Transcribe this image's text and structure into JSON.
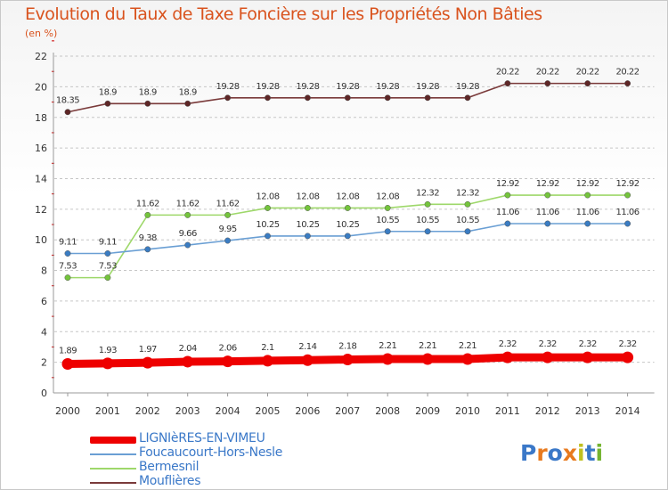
{
  "header": {
    "title": "Evolution du Taux de Taxe Foncière sur les Propriétés Non Bâties",
    "unit": "(en %)"
  },
  "logo": {
    "text": "Proxiti"
  },
  "colors": {
    "title": "#d9531e",
    "grid": "#c0c0c0",
    "axis_red": "#cc0000"
  },
  "chart_data": {
    "type": "line",
    "title": "Evolution du Taux de Taxe Foncière sur les Propriétés Non Bâties",
    "ylabel": "(en %)",
    "xlabel": "",
    "ylim": [
      0,
      22
    ],
    "yticks": [
      0,
      2,
      4,
      6,
      8,
      10,
      12,
      14,
      16,
      18,
      20,
      22
    ],
    "x": [
      "2000",
      "2001",
      "2002",
      "2003",
      "2004",
      "2005",
      "2006",
      "2007",
      "2008",
      "2009",
      "2010",
      "2011",
      "2012",
      "2013",
      "2014"
    ],
    "grid": "horizontal dashed",
    "legend": "bottom-left",
    "series": [
      {
        "name": "LIGNIèRES-EN-VIMEU",
        "color": "#ee0000",
        "point": "#ee0000",
        "width": "thick",
        "values": [
          1.89,
          1.93,
          1.97,
          2.04,
          2.06,
          2.1,
          2.14,
          2.18,
          2.21,
          2.21,
          2.21,
          2.32,
          2.32,
          2.32,
          2.32
        ],
        "labels": [
          "1.89",
          "1.93",
          "1.97",
          "2.04",
          "2.06",
          "2.1",
          "2.14",
          "2.18",
          "2.21",
          "2.21",
          "2.21",
          "2.32",
          "2.32",
          "2.32",
          "2.32"
        ]
      },
      {
        "name": "Foucaucourt-Hors-Nesle",
        "color": "#6a9fd4",
        "point": "#3a7cc2",
        "width": "thin",
        "values": [
          9.11,
          9.11,
          9.38,
          9.66,
          9.95,
          10.25,
          10.25,
          10.25,
          10.55,
          10.55,
          10.55,
          11.06,
          11.06,
          11.06,
          11.06
        ],
        "labels": [
          "9.11",
          "9.11",
          "9.38",
          "9.66",
          "9.95",
          "10.25",
          "10.25",
          "10.25",
          "10.55",
          "10.55",
          "10.55",
          "11.06",
          "11.06",
          "11.06",
          "11.06"
        ]
      },
      {
        "name": "Bermesnil",
        "color": "#9ed86a",
        "point": "#74c43c",
        "width": "thin",
        "values": [
          7.53,
          7.53,
          11.62,
          11.62,
          11.62,
          12.08,
          12.08,
          12.08,
          12.08,
          12.32,
          12.32,
          12.92,
          12.92,
          12.92,
          12.92
        ],
        "labels": [
          "7.53",
          "7.53",
          "11.62",
          "11.62",
          "11.62",
          "12.08",
          "12.08",
          "12.08",
          "12.08",
          "12.32",
          "12.32",
          "12.92",
          "12.92",
          "12.92",
          "12.92"
        ]
      },
      {
        "name": "Mouflières",
        "color": "#7a3a3a",
        "point": "#5e2626",
        "width": "thin",
        "values": [
          18.35,
          18.9,
          18.9,
          18.9,
          19.28,
          19.28,
          19.28,
          19.28,
          19.28,
          19.28,
          19.28,
          20.22,
          20.22,
          20.22,
          20.22
        ],
        "labels": [
          "18.35",
          "18.9",
          "18.9",
          "18.9",
          "19.28",
          "19.28",
          "19.28",
          "19.28",
          "19.28",
          "19.28",
          "19.28",
          "20.22",
          "20.22",
          "20.22",
          "20.22"
        ]
      }
    ]
  }
}
